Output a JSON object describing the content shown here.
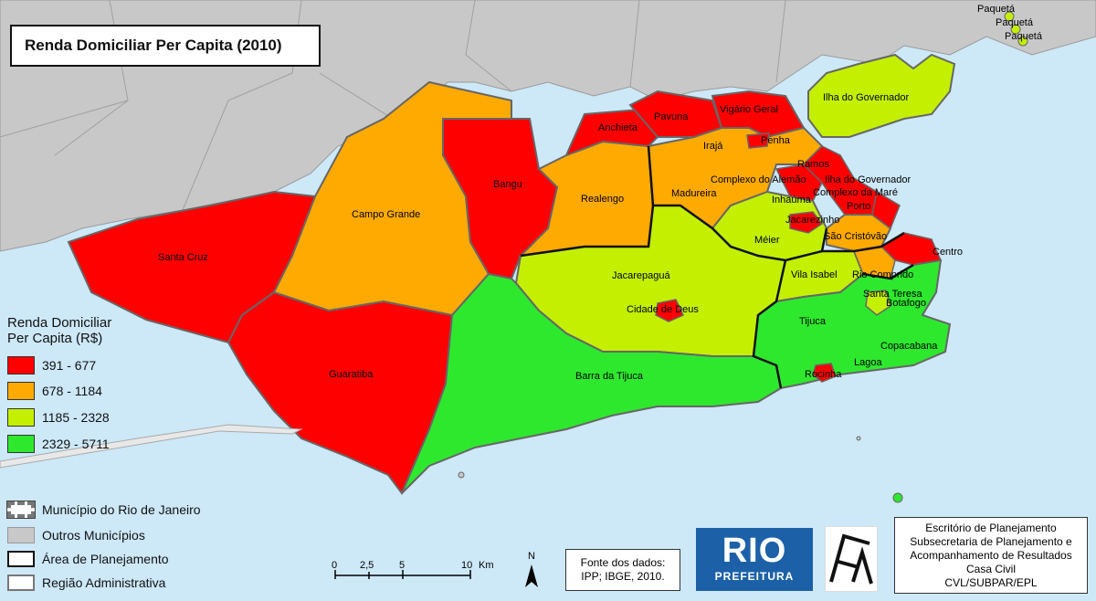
{
  "title": "Renda Domiciliar Per Capita (2010)",
  "legend": {
    "title_line1": "Renda Domiciliar",
    "title_line2": "Per Capita (R$)",
    "classes": [
      {
        "label": "391 - 677",
        "color": "#ff0000"
      },
      {
        "label": "678 - 1184",
        "color": "#ffaa00"
      },
      {
        "label": "1185 - 2328",
        "color": "#c4f000"
      },
      {
        "label": "2329 - 5711",
        "color": "#2ee82e"
      }
    ],
    "symbols": [
      {
        "label": "Município do Rio de Janeiro"
      },
      {
        "label": "Outros Municípios"
      },
      {
        "label": "Área de Planejamento"
      },
      {
        "label": "Região Administrativa"
      }
    ]
  },
  "regions": {
    "santa_cruz": "Santa Cruz",
    "campo_grande": "Campo Grande",
    "bangu": "Bangu",
    "realengo": "Realengo",
    "anchieta": "Anchieta",
    "pavuna": "Pavuna",
    "vigario_geral": "Vigário Geral",
    "iraja": "Irajá",
    "penha": "Penha",
    "ilha_governador_top": "Ilha do Governador",
    "madureira": "Madureira",
    "ramos": "Ramos",
    "complexo_alemao": "Complexo do Alemão",
    "ilha_governador_mid": "Ilha do Governador",
    "complexo_mare": "Complexo da Maré",
    "inhauma": "Inhaúma",
    "penha_circular": "Porto",
    "jacarezinho": "Jacarezinho",
    "meier": "Méier",
    "sao_cristovao": "São Cristóvão",
    "centro": "Centro",
    "jacarepagua": "Jacarepaguá",
    "cidade_de_deus": "Cidade de Deus",
    "vila_isabel": "Vila Isabel",
    "rio_comprido": "Rio Comprido",
    "santa_teresa": "Santa Teresa",
    "botafogo": "Botafogo",
    "tijuca": "Tijuca",
    "copacabana": "Copacabana",
    "lagoa": "Lagoa",
    "rocinha": "Rocinha",
    "barra_da_tijuca": "Barra da Tijuca",
    "guaratiba": "Guaratiba",
    "paqueta1": "Paquetá",
    "paqueta2": "Paquetá",
    "paqueta3": "Paquetá"
  },
  "scale": {
    "t0": "0",
    "t1": "2,5",
    "t2": "5",
    "t3": "10",
    "unit": "Km"
  },
  "north": "N",
  "source": {
    "line1": "Fonte dos dados:",
    "line2": "IPP; IBGE, 2010."
  },
  "rio_logo": {
    "big": "RIO",
    "small": "PREFEITURA"
  },
  "epl_logo": {
    "letters": "EPL"
  },
  "office": {
    "line1": "Escritório de Planejamento",
    "line2": "Subsecretaria de Planejamento e",
    "line3": "Acompanhamento de Resultados",
    "line4": "Casa Civil",
    "line5": "CVL/SUBPAR/EPL"
  }
}
